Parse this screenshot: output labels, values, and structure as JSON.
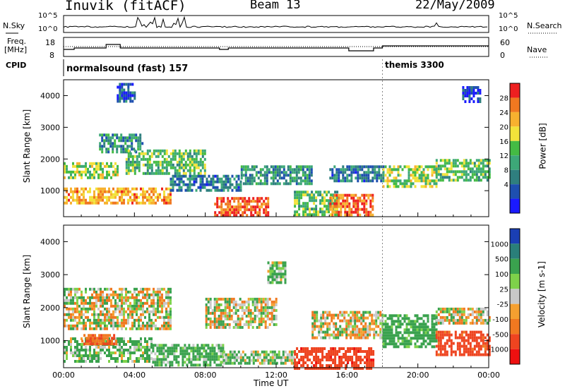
{
  "header": {
    "station": "Inuvik (fitACF)",
    "beam": "Beam 13",
    "date": "22/May/2009"
  },
  "top_panels": {
    "nsky_label": "N.Sky",
    "nsky_ticks": [
      "10^5",
      "10^0"
    ],
    "nsearch_label": "N.Search",
    "nsearch_ticks": [
      "10^5",
      "10^0"
    ],
    "freq_label_1": "Freq.",
    "freq_label_2": "[MHz]",
    "freq_ticks": [
      "18",
      "8"
    ],
    "nave_label": "Nave",
    "nave_ticks": [
      "60",
      "0"
    ],
    "cpid_label": "CPID",
    "cpid_modes": [
      {
        "name": "normalsound (fast) 157",
        "start_hour": 0
      },
      {
        "name": "themis 3300",
        "start_hour": 18
      }
    ]
  },
  "colors": {
    "power": [
      "#1a1aff",
      "#1e4fb0",
      "#2f7f7f",
      "#3da878",
      "#44bb44",
      "#f2e23a",
      "#f7b12f",
      "#f07820",
      "#ee2020"
    ],
    "velocity": [
      "#1a3fb4",
      "#2a7f7a",
      "#3aa24e",
      "#7ed24a",
      "#c8c8c8",
      "#f5a030",
      "#f07820",
      "#ee4420",
      "#ee1010"
    ]
  },
  "chart_data": [
    {
      "type": "heatmap",
      "name": "power",
      "ylabel": "Slant Range [km]",
      "yticks": [
        1000,
        2000,
        3000,
        4000
      ],
      "ylim": [
        180,
        4500
      ],
      "xlim": [
        0,
        24
      ],
      "colorbar_label": "Power [dB]",
      "colorbar_ticks": [
        "28",
        "24",
        "20",
        "16",
        "12",
        "8",
        "4"
      ],
      "bands": [
        {
          "x": [
            0,
            6
          ],
          "y": [
            600,
            1100
          ],
          "value": 24
        },
        {
          "x": [
            0,
            3
          ],
          "y": [
            1400,
            1900
          ],
          "value": 18
        },
        {
          "x": [
            2,
            4.5
          ],
          "y": [
            2200,
            2800
          ],
          "value": 12
        },
        {
          "x": [
            3.5,
            8
          ],
          "y": [
            1500,
            2300
          ],
          "value": 16
        },
        {
          "x": [
            6,
            10
          ],
          "y": [
            1000,
            1500
          ],
          "value": 10
        },
        {
          "x": [
            8.5,
            11.5
          ],
          "y": [
            200,
            800
          ],
          "value": 28
        },
        {
          "x": [
            10,
            14
          ],
          "y": [
            1200,
            1800
          ],
          "value": 12
        },
        {
          "x": [
            13,
            15.5
          ],
          "y": [
            200,
            1000
          ],
          "value": 16
        },
        {
          "x": [
            15,
            17.5
          ],
          "y": [
            200,
            900
          ],
          "value": 27
        },
        {
          "x": [
            15,
            18
          ],
          "y": [
            1300,
            1800
          ],
          "value": 10
        },
        {
          "x": [
            18,
            21
          ],
          "y": [
            1100,
            1800
          ],
          "value": 18
        },
        {
          "x": [
            21,
            24
          ],
          "y": [
            1300,
            2000
          ],
          "value": 16
        },
        {
          "x": [
            3,
            4
          ],
          "y": [
            3800,
            4400
          ],
          "value": 8
        },
        {
          "x": [
            22.5,
            23.5
          ],
          "y": [
            3800,
            4300
          ],
          "value": 6
        }
      ]
    },
    {
      "type": "heatmap",
      "name": "velocity",
      "ylabel": "Slant Range [km]",
      "xlabel": "Time UT",
      "yticks": [
        1000,
        2000,
        3000,
        4000
      ],
      "ylim": [
        180,
        4500
      ],
      "xlim": [
        0,
        24
      ],
      "xticks": [
        "00:00",
        "04:00",
        "08:00",
        "12:00",
        "16:00",
        "20:00",
        "00:00"
      ],
      "colorbar_label": "Velocity [m s-1]",
      "colorbar_ticks": [
        "1000",
        "500",
        "100",
        "25",
        "-25",
        "-100",
        "-500",
        "-1000"
      ],
      "bands": [
        {
          "x": [
            0,
            6
          ],
          "y": [
            1400,
            2600
          ],
          "value": 0
        },
        {
          "x": [
            0,
            5
          ],
          "y": [
            400,
            1100
          ],
          "value": 80
        },
        {
          "x": [
            1,
            3
          ],
          "y": [
            900,
            1200
          ],
          "value": -300
        },
        {
          "x": [
            5,
            9
          ],
          "y": [
            300,
            900
          ],
          "value": 120
        },
        {
          "x": [
            8,
            12
          ],
          "y": [
            1400,
            2300
          ],
          "value": 0
        },
        {
          "x": [
            9,
            13
          ],
          "y": [
            300,
            700
          ],
          "value": 60
        },
        {
          "x": [
            13,
            17.5
          ],
          "y": [
            200,
            800
          ],
          "value": -600
        },
        {
          "x": [
            14,
            18
          ],
          "y": [
            1100,
            1900
          ],
          "value": 0
        },
        {
          "x": [
            18,
            21
          ],
          "y": [
            800,
            1800
          ],
          "value": 150
        },
        {
          "x": [
            21,
            24
          ],
          "y": [
            600,
            1300
          ],
          "value": -400
        },
        {
          "x": [
            21,
            24
          ],
          "y": [
            1500,
            2000
          ],
          "value": 0
        },
        {
          "x": [
            11.5,
            12.5
          ],
          "y": [
            2800,
            3400
          ],
          "value": 80
        }
      ]
    }
  ]
}
